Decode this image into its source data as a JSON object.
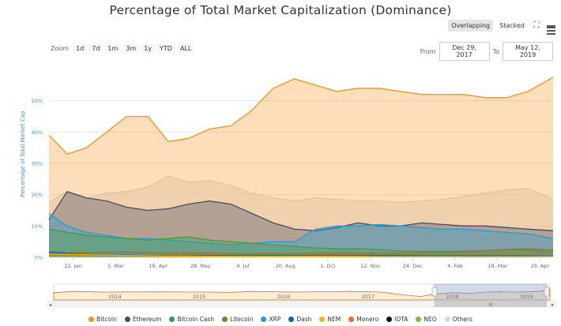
{
  "title": "Percentage of Total Market Capitalization (Dominance)",
  "mode_buttons": {
    "overlapping": "Overlapping",
    "stacked": "Stacked"
  },
  "icons": {
    "fullscreen": "fullscreen-icon",
    "menu": "menu-icon"
  },
  "zoom": {
    "label": "Zoom",
    "buttons": [
      "1d",
      "7d",
      "1m",
      "3m",
      "1y",
      "YTD",
      "ALL"
    ]
  },
  "range": {
    "from_label": "From",
    "from_value": "Dec 29, 2017",
    "to_label": "To",
    "to_value": "May 12, 2019"
  },
  "navigator": {
    "year_labels": [
      "2014",
      "2015",
      "2016",
      "2017",
      "2018",
      "2019"
    ],
    "scroll_left": "◂",
    "scroll_right": "▸",
    "grip": "III"
  },
  "chart_data": {
    "type": "area",
    "title": "Percentage of Total Market Capitalization (Dominance)",
    "ylabel": "Percentage of Total Market Cap",
    "ylim": [
      0,
      60
    ],
    "y_ticks": [
      "0%",
      "10%",
      "20%",
      "30%",
      "40%",
      "50%"
    ],
    "x_tick_labels": [
      "22. Jan",
      "5. Mar",
      "16. Apr",
      "28. May",
      "9. Jul",
      "20. Aug",
      "1. Oct",
      "12. Nov",
      "24. Dec",
      "4. Feb",
      "18. Mar",
      "29. Apr"
    ],
    "x": [
      "2017-12-29",
      "2018-01-16",
      "2018-02-04",
      "2018-02-24",
      "2018-03-16",
      "2018-04-06",
      "2018-04-26",
      "2018-05-16",
      "2018-06-06",
      "2018-06-27",
      "2018-07-18",
      "2018-08-08",
      "2018-08-29",
      "2018-09-19",
      "2018-10-10",
      "2018-10-31",
      "2018-11-21",
      "2018-12-12",
      "2019-01-02",
      "2019-01-23",
      "2019-02-13",
      "2019-03-06",
      "2019-03-27",
      "2019-04-17",
      "2019-05-12"
    ],
    "series": [
      {
        "name": "Others",
        "color": "#d9d9d9",
        "values": [
          17.5,
          21,
          19,
          20.5,
          21,
          22.5,
          26,
          24,
          24.5,
          23,
          20.5,
          19,
          18,
          19,
          18.5,
          18,
          18,
          17.5,
          18,
          18.5,
          19.5,
          20.5,
          21.5,
          22,
          18.5
        ]
      },
      {
        "name": "Bitcoin",
        "color": "#f7931a",
        "values": [
          39,
          33,
          35,
          40,
          45,
          45,
          37,
          38,
          41,
          42,
          47,
          54,
          57,
          55,
          53,
          54,
          54,
          53,
          52,
          52,
          52,
          51,
          51,
          53,
          57.5
        ]
      },
      {
        "name": "Ethereum",
        "color": "#434a68",
        "values": [
          12,
          21,
          19,
          18,
          16,
          15,
          15.5,
          17,
          18,
          17,
          14,
          11,
          9,
          8.5,
          9.5,
          11,
          10,
          10,
          11,
          10.5,
          10,
          10,
          9.5,
          9,
          8.5
        ]
      },
      {
        "name": "XRP",
        "color": "#1da1d6",
        "values": [
          14,
          10,
          8,
          7,
          6,
          6,
          5.5,
          5,
          4.5,
          4,
          4.5,
          5,
          5,
          9,
          10,
          10,
          10.5,
          10,
          9.5,
          9,
          9,
          8.5,
          8,
          7.5,
          6
        ]
      },
      {
        "name": "Bitcoin Cash",
        "color": "#3f9d47",
        "values": [
          9,
          8,
          7,
          6.5,
          6,
          5.5,
          6,
          6.5,
          5.5,
          5,
          4.5,
          4,
          3.5,
          3,
          2.8,
          2.8,
          2.5,
          2,
          1.9,
          1.9,
          2,
          2.2,
          2.5,
          2.4,
          1.7
        ]
      },
      {
        "name": "Litecoin",
        "color": "#a0722d",
        "values": [
          1.7,
          1.6,
          1.5,
          1.7,
          1.7,
          1.5,
          1.5,
          1.4,
          1.4,
          1.2,
          1.2,
          1.2,
          1.2,
          1.3,
          1.3,
          1.3,
          1.2,
          1.3,
          1.5,
          1.6,
          1.8,
          2.1,
          2.5,
          2.8,
          2.3
        ]
      },
      {
        "name": "Dash",
        "color": "#1466a0",
        "values": [
          1.7,
          1.2,
          0.9,
          0.8,
          0.7,
          0.6,
          0.6,
          0.6,
          0.6,
          0.6,
          0.6,
          0.6,
          0.6,
          0.6,
          0.6,
          0.6,
          0.6,
          0.6,
          0.5,
          0.5,
          0.5,
          0.5,
          0.5,
          0.5,
          0.4
        ]
      },
      {
        "name": "NEM",
        "color": "#f2b705",
        "values": [
          1,
          0.9,
          0.8,
          0.7,
          0.6,
          0.5,
          0.4,
          0.4,
          0.3,
          0.3,
          0.3,
          0.3,
          0.3,
          0.3,
          0.3,
          0.3,
          0.2,
          0.2,
          0.2,
          0.2,
          0.2,
          0.2,
          0.2,
          0.2,
          0.2
        ]
      }
    ],
    "legend": [
      {
        "name": "Bitcoin",
        "color": "#f7931a"
      },
      {
        "name": "Ethereum",
        "color": "#434a68"
      },
      {
        "name": "Bitcoin Cash",
        "color": "#3f9d47"
      },
      {
        "name": "Litecoin",
        "color": "#a0722d"
      },
      {
        "name": "XRP",
        "color": "#1da1d6"
      },
      {
        "name": "Dash",
        "color": "#1466a0"
      },
      {
        "name": "NEM",
        "color": "#f2b705"
      },
      {
        "name": "Monero",
        "color": "#f26822"
      },
      {
        "name": "IOTA",
        "color": "#111111"
      },
      {
        "name": "NEO",
        "color": "#7ac231"
      },
      {
        "name": "Others",
        "color": "#d9d9d9"
      }
    ],
    "legend_position": "bottom",
    "grid": "horizontal"
  }
}
